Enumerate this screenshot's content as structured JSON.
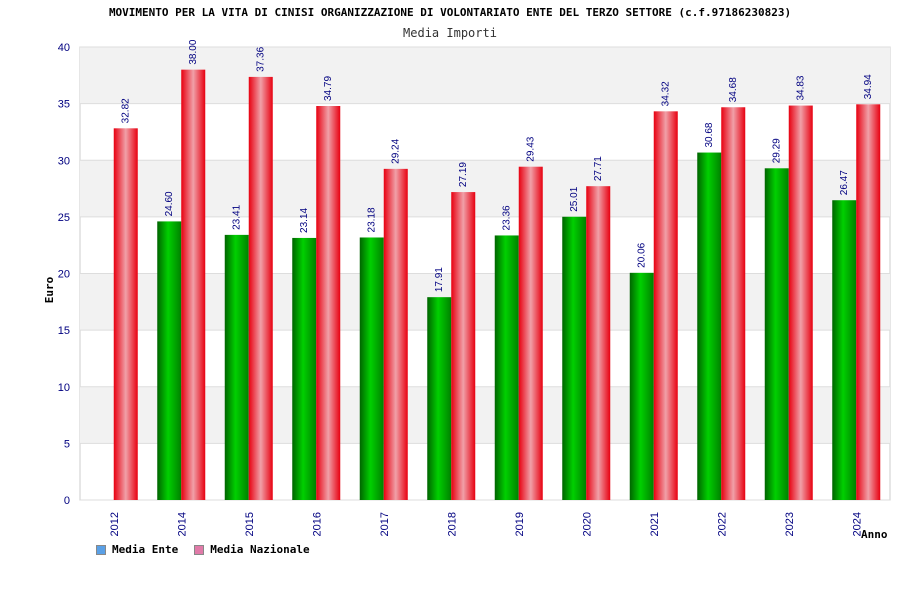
{
  "chart_data": {
    "type": "bar",
    "title": "MOVIMENTO PER LA VITA DI CINISI ORGANIZZAZIONE DI VOLONTARIATO ENTE DEL TERZO SETTORE (c.f.97186230823)",
    "subtitle": "Media Importi",
    "xlabel": "Anno",
    "ylabel": "Euro",
    "ylim": [
      0,
      40
    ],
    "yticks": [
      0,
      5,
      10,
      15,
      20,
      25,
      30,
      35,
      40
    ],
    "categories": [
      "2012",
      "2014",
      "2015",
      "2016",
      "2017",
      "2018",
      "2019",
      "2020",
      "2021",
      "2022",
      "2023",
      "2024"
    ],
    "series": [
      {
        "name": "Media Ente",
        "values": [
          null,
          24.6,
          23.41,
          23.14,
          23.18,
          17.91,
          23.36,
          25.01,
          20.06,
          30.68,
          29.29,
          26.47
        ],
        "labels": [
          "",
          "24.60",
          "23.41",
          "23.14",
          "23.18",
          "17.91",
          "23.36",
          "25.01",
          "20.06",
          "30.68",
          "29.29",
          "26.47"
        ],
        "color": "#00b000",
        "legend_color": "#5aa0e6"
      },
      {
        "name": "Media Nazionale",
        "values": [
          32.82,
          38.0,
          37.36,
          34.79,
          29.24,
          27.19,
          29.43,
          27.71,
          34.32,
          34.68,
          34.83,
          34.94
        ],
        "labels": [
          "32.82",
          "38.00",
          "37.36",
          "34.79",
          "29.24",
          "27.19",
          "29.43",
          "27.71",
          "34.32",
          "34.68",
          "34.83",
          "34.94"
        ],
        "color": "#ee1122",
        "legend_color": "#e07aa8"
      }
    ],
    "grid": true,
    "legend_position": "bottom-left"
  }
}
